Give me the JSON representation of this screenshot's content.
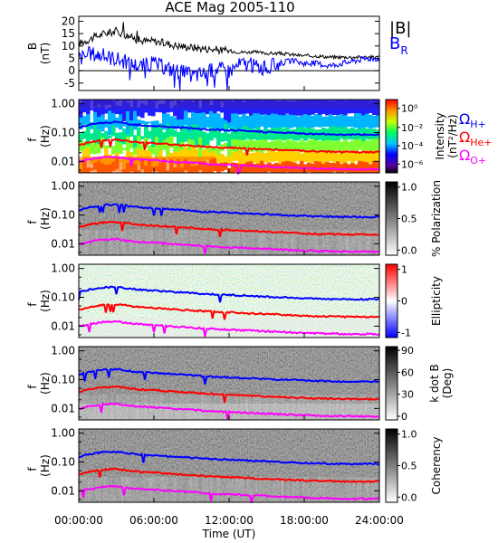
{
  "figure": {
    "title": "ACE Mag 2005-110",
    "xlabel": "Time (UT)",
    "time_ticks": [
      "00:00:00",
      "06:00:00",
      "12:00:00",
      "18:00:00",
      "24:00:00"
    ],
    "freq_ticks": [
      "1.00",
      "0.10",
      "0.01"
    ],
    "freq_axis_label_f": "f",
    "freq_axis_label_hz": "(Hz)"
  },
  "legend": {
    "btotal": "|B|",
    "bradial": "B",
    "bradial_sub": "R",
    "omega_h": "Ω",
    "omega_h_sub": "H+",
    "omega_he": "Ω",
    "omega_he_sub": "He+",
    "omega_o": "Ω",
    "omega_o_sub": "O+",
    "colors": {
      "btotal": "#000000",
      "bradial": "#0000ff",
      "omega_h": "#0000ff",
      "omega_he": "#ff0000",
      "omega_o": "#ff00ff"
    }
  },
  "chart_data": [
    {
      "type": "line",
      "panel": "magnetic-field",
      "ylabel": "B",
      "yunit": "(nT)",
      "ylim": [
        -8,
        22
      ],
      "yticks": [
        "20",
        "15",
        "10",
        "5",
        "0",
        "-5"
      ],
      "x_unit": "hours UT",
      "series": [
        {
          "name": "|B|",
          "color": "#000000",
          "x": [
            0,
            1,
            2,
            3,
            4,
            5,
            6,
            7,
            8,
            9,
            10,
            11,
            12,
            13,
            14,
            15,
            16,
            17,
            18,
            19,
            20,
            21,
            22,
            23,
            24
          ],
          "values": [
            11,
            13,
            15,
            16,
            14,
            12,
            12,
            11,
            10,
            9.5,
            9,
            8.5,
            8,
            7.5,
            7.5,
            7,
            7,
            6.5,
            6,
            6,
            5.5,
            5.5,
            5.5,
            5.5,
            5.5
          ]
        },
        {
          "name": "B",
          "color": "#0000ff",
          "x": [
            0,
            1,
            2,
            3,
            4,
            5,
            6,
            7,
            8,
            9,
            10,
            11,
            12,
            13,
            14,
            15,
            16,
            17,
            18,
            19,
            20,
            21,
            22,
            23,
            24
          ],
          "values": [
            5,
            7,
            6,
            5,
            3,
            2,
            3,
            1,
            0,
            -2,
            -1,
            1,
            0,
            3,
            2,
            1,
            3,
            4,
            3,
            3,
            2,
            3,
            4,
            5,
            5
          ]
        }
      ]
    },
    {
      "type": "heatmap",
      "panel": "intensity",
      "ylabel": "f (Hz)",
      "colorbar_label": "Intensity (nT²/Hz)",
      "colorbar_ticks": [
        "10⁰",
        "10⁻²",
        "10⁻⁴",
        "10⁻⁶"
      ],
      "colormap": "rainbow",
      "ylim_hz": [
        0.004,
        1.4
      ],
      "yscale": "log"
    },
    {
      "type": "heatmap",
      "panel": "polarization",
      "ylabel": "f (Hz)",
      "colorbar_label": "% Polarization",
      "colorbar_ticks": [
        "1.0",
        "0.5",
        "0.0"
      ],
      "colormap": "grayscale",
      "ylim_hz": [
        0.004,
        1.4
      ],
      "yscale": "log"
    },
    {
      "type": "heatmap",
      "panel": "ellipticity",
      "ylabel": "f (Hz)",
      "colorbar_label": "Ellipticity",
      "colorbar_ticks": [
        "1",
        "0",
        "-1"
      ],
      "colormap": "blue-white-red",
      "ylim_hz": [
        0.004,
        1.4
      ],
      "yscale": "log"
    },
    {
      "type": "heatmap",
      "panel": "kdotb",
      "ylabel": "f (Hz)",
      "colorbar_label": "k dot B (Deg)",
      "colorbar_ticks": [
        "90",
        "60",
        "30",
        "0"
      ],
      "colormap": "grayscale",
      "ylim_hz": [
        0.004,
        1.4
      ],
      "yscale": "log"
    },
    {
      "type": "heatmap",
      "panel": "coherency",
      "ylabel": "f (Hz)",
      "colorbar_label": "Coherency",
      "colorbar_ticks": [
        "1.0",
        "0.5",
        "0.0"
      ],
      "colormap": "grayscale",
      "ylim_hz": [
        0.004,
        1.4
      ],
      "yscale": "log"
    },
    {
      "type": "line",
      "panel": "gyrofrequency-overlays",
      "x_unit": "hours UT",
      "series": [
        {
          "name": "ΩH+",
          "color": "#0000ff",
          "x": [
            0,
            1,
            2,
            3,
            4,
            5,
            6,
            7,
            8,
            9,
            10,
            11,
            12,
            13,
            14,
            15,
            16,
            17,
            18,
            19,
            20,
            21,
            22,
            23,
            24
          ],
          "values": [
            0.15,
            0.19,
            0.22,
            0.23,
            0.2,
            0.18,
            0.17,
            0.16,
            0.15,
            0.14,
            0.13,
            0.125,
            0.12,
            0.115,
            0.11,
            0.105,
            0.1,
            0.097,
            0.093,
            0.09,
            0.088,
            0.086,
            0.085,
            0.085,
            0.085
          ]
        },
        {
          "name": "ΩHe+",
          "color": "#ff0000",
          "x": [
            0,
            1,
            2,
            3,
            4,
            5,
            6,
            7,
            8,
            9,
            10,
            11,
            12,
            13,
            14,
            15,
            16,
            17,
            18,
            19,
            20,
            21,
            22,
            23,
            24
          ],
          "values": [
            0.037,
            0.047,
            0.055,
            0.057,
            0.05,
            0.045,
            0.043,
            0.04,
            0.037,
            0.035,
            0.033,
            0.031,
            0.03,
            0.029,
            0.027,
            0.026,
            0.025,
            0.024,
            0.023,
            0.022,
            0.022,
            0.021,
            0.021,
            0.021,
            0.021
          ]
        },
        {
          "name": "ΩO+",
          "color": "#ff00ff",
          "x": [
            0,
            1,
            2,
            3,
            4,
            5,
            6,
            7,
            8,
            9,
            10,
            11,
            12,
            13,
            14,
            15,
            16,
            17,
            18,
            19,
            20,
            21,
            22,
            23,
            24
          ],
          "values": [
            0.0095,
            0.012,
            0.014,
            0.0145,
            0.0125,
            0.0115,
            0.011,
            0.01,
            0.0095,
            0.009,
            0.0083,
            0.0079,
            0.0075,
            0.0072,
            0.0069,
            0.0066,
            0.0063,
            0.006,
            0.0058,
            0.0056,
            0.0055,
            0.0054,
            0.0053,
            0.0053,
            0.0053
          ]
        }
      ]
    }
  ]
}
